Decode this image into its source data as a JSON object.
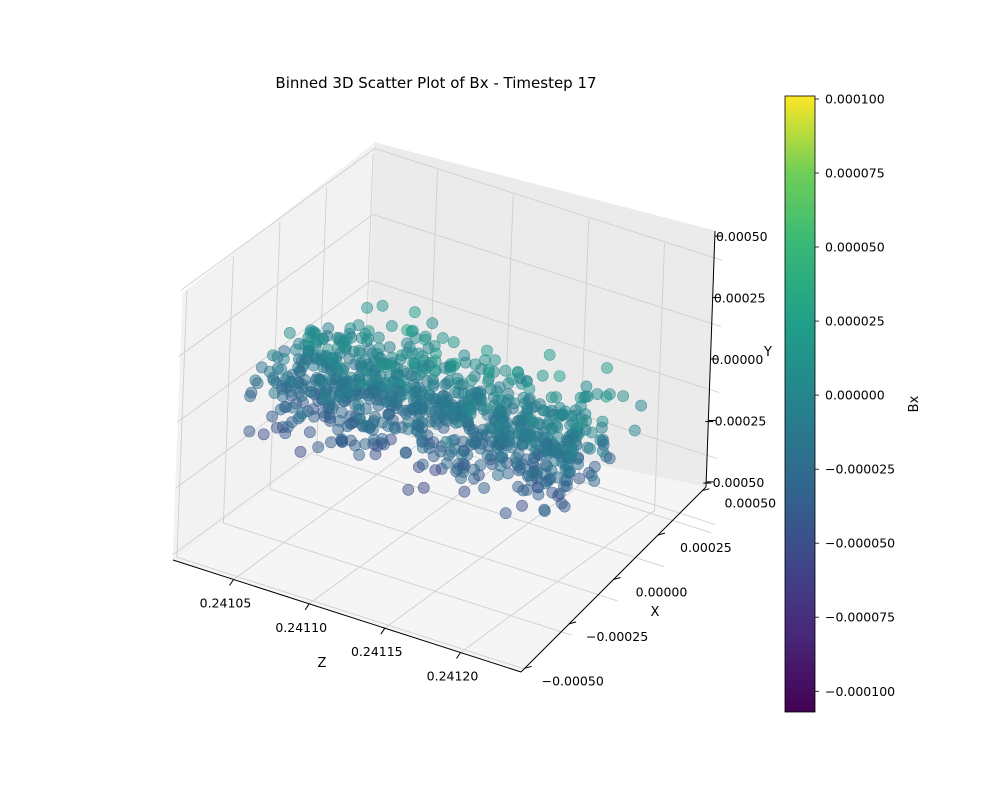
{
  "chart_data": {
    "type": "scatter",
    "projection": "3d",
    "title": "Binned 3D Scatter Plot of Bx - Timestep 17",
    "xlabel": "Z",
    "ylabel": "X",
    "zlabel": "Y",
    "z_axis_ticks": [
      "0.24105",
      "0.24110",
      "0.24115",
      "0.24120"
    ],
    "z_axis_range": [
      0.24101,
      0.24124
    ],
    "x_axis_ticks": [
      "−0.00050",
      "−0.00025",
      "0.00000",
      "0.00025",
      "0.00050"
    ],
    "x_axis_range": [
      -0.0005,
      0.0005
    ],
    "y_axis_ticks": [
      "−0.00050",
      "−0.00025",
      "0.00000",
      "0.00025",
      "0.00050"
    ],
    "y_axis_range": [
      -0.0005,
      0.0005
    ],
    "grid": true,
    "colormap": "viridis",
    "point_alpha": 0.5,
    "colorbar": {
      "label": "Bx",
      "range": [
        -0.000107,
        0.000101
      ],
      "ticks": [
        "0.000100",
        "0.000075",
        "0.000050",
        "0.000025",
        "0.000000",
        "−0.000025",
        "−0.000050",
        "−0.000075",
        "−0.000100"
      ]
    },
    "cloud": {
      "z_range": [
        0.24102,
        0.24122
      ],
      "x_spread": 0.00028,
      "y_spread": 0.00018,
      "bx_trend": "increases with Y and with X",
      "bx_range": [
        -7e-05,
        4e-05
      ]
    }
  }
}
